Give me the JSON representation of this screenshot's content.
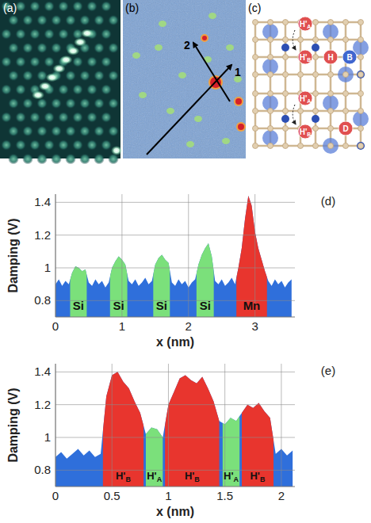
{
  "panels": {
    "a": {
      "label": "(a)"
    },
    "b": {
      "label": "(b)",
      "arrows": [
        {
          "label": "1"
        },
        {
          "label": "2"
        }
      ]
    },
    "c": {
      "label": "(c)",
      "atoms": [
        {
          "label": "H'",
          "subscript": "A"
        },
        {
          "label": "H'",
          "subscript": "B"
        },
        {
          "label": "H"
        },
        {
          "label": "B"
        },
        {
          "label": "H'",
          "subscript": "A"
        },
        {
          "label": "D"
        },
        {
          "label": "H'",
          "subscript": "B"
        }
      ]
    }
  },
  "chart_data": [
    {
      "type": "area",
      "panel_label": "(d)",
      "x_label": "x (nm)",
      "y_label": "Damping (V)",
      "xlim": [
        0,
        3.6
      ],
      "ylim": [
        0.7,
        1.45
      ],
      "xticks": [
        0,
        1,
        2,
        3
      ],
      "yticks": [
        0.8,
        1,
        1.2,
        1.4
      ],
      "grid": true,
      "color": "#2f6fdb",
      "x": [
        0,
        0.05,
        0.1,
        0.15,
        0.2,
        0.25,
        0.3,
        0.35,
        0.4,
        0.45,
        0.5,
        0.55,
        0.6,
        0.65,
        0.7,
        0.75,
        0.8,
        0.85,
        0.9,
        0.95,
        1,
        1.05,
        1.1,
        1.15,
        1.2,
        1.25,
        1.3,
        1.35,
        1.4,
        1.45,
        1.5,
        1.55,
        1.6,
        1.65,
        1.7,
        1.75,
        1.8,
        1.85,
        1.9,
        1.95,
        2,
        2.05,
        2.1,
        2.15,
        2.2,
        2.25,
        2.3,
        2.35,
        2.4,
        2.45,
        2.5,
        2.55,
        2.6,
        2.65,
        2.7,
        2.75,
        2.8,
        2.85,
        2.9,
        2.95,
        3,
        3.05,
        3.1,
        3.15,
        3.2,
        3.25,
        3.3,
        3.35,
        3.4,
        3.45,
        3.5,
        3.55
      ],
      "values": [
        0.9,
        0.93,
        0.89,
        0.92,
        0.9,
        0.97,
        1.01,
        1.0,
        0.98,
        0.99,
        0.91,
        0.89,
        0.93,
        0.9,
        0.92,
        0.88,
        0.91,
        1.0,
        1.04,
        1.07,
        1.05,
        1.02,
        0.92,
        0.9,
        0.93,
        0.89,
        0.91,
        0.94,
        0.9,
        0.92,
        1.02,
        1.06,
        1.08,
        1.05,
        1.03,
        0.91,
        0.89,
        0.93,
        0.9,
        0.92,
        0.88,
        0.91,
        0.93,
        1.02,
        1.08,
        1.12,
        1.15,
        1.07,
        0.92,
        0.9,
        0.93,
        0.89,
        0.91,
        0.94,
        0.9,
        1.0,
        1.12,
        1.3,
        1.44,
        1.38,
        1.22,
        1.12,
        1.05,
        0.98,
        0.92,
        0.89,
        0.93,
        0.9,
        0.92,
        0.88,
        0.91,
        0.93
      ],
      "regions": [
        {
          "label": "Si",
          "start": 0.22,
          "end": 0.47,
          "color": "#7be07b"
        },
        {
          "label": "Si",
          "start": 0.82,
          "end": 1.08,
          "color": "#7be07b"
        },
        {
          "label": "Si",
          "start": 1.47,
          "end": 1.72,
          "color": "#7be07b"
        },
        {
          "label": "Si",
          "start": 2.12,
          "end": 2.38,
          "color": "#7be07b"
        },
        {
          "label": "Mn",
          "start": 2.72,
          "end": 3.18,
          "color": "#e8352e"
        }
      ]
    },
    {
      "type": "area",
      "panel_label": "(e)",
      "x_label": "x (nm)",
      "y_label": "Damping (V)",
      "xlim": [
        0,
        2.12
      ],
      "ylim": [
        0.7,
        1.45
      ],
      "xticks": [
        0,
        0.5,
        1,
        1.5,
        2
      ],
      "yticks": [
        0.8,
        1,
        1.2,
        1.4
      ],
      "grid": true,
      "color": "#2f6fdb",
      "x": [
        0,
        0.05,
        0.1,
        0.15,
        0.2,
        0.25,
        0.3,
        0.35,
        0.4,
        0.45,
        0.5,
        0.55,
        0.6,
        0.65,
        0.7,
        0.75,
        0.8,
        0.85,
        0.9,
        0.95,
        1,
        1.05,
        1.1,
        1.15,
        1.2,
        1.25,
        1.3,
        1.35,
        1.4,
        1.45,
        1.5,
        1.55,
        1.6,
        1.65,
        1.7,
        1.75,
        1.8,
        1.85,
        1.9,
        1.95,
        2,
        2.05,
        2.1
      ],
      "values": [
        0.88,
        0.91,
        0.87,
        0.9,
        0.93,
        0.89,
        0.92,
        0.88,
        0.9,
        1.25,
        1.38,
        1.4,
        1.34,
        1.3,
        1.22,
        1.15,
        1.02,
        1.06,
        1.05,
        1.0,
        1.2,
        1.28,
        1.36,
        1.38,
        1.35,
        1.33,
        1.37,
        1.3,
        1.22,
        1.1,
        1.08,
        1.12,
        1.1,
        1.15,
        1.2,
        1.18,
        1.21,
        1.16,
        1.12,
        0.9,
        0.93,
        0.89,
        0.92
      ],
      "regions": [
        {
          "label": "H'",
          "subscript": "B",
          "start": 0.42,
          "end": 0.78,
          "color": "#e8352e"
        },
        {
          "label": "H'",
          "subscript": "A",
          "start": 0.8,
          "end": 0.95,
          "color": "#7be07b"
        },
        {
          "label": "H'",
          "subscript": "B",
          "start": 0.97,
          "end": 1.45,
          "color": "#e8352e"
        },
        {
          "label": "H'",
          "subscript": "A",
          "start": 1.48,
          "end": 1.63,
          "color": "#7be07b"
        },
        {
          "label": "H'",
          "subscript": "B",
          "start": 1.65,
          "end": 1.93,
          "color": "#e8352e"
        }
      ]
    }
  ]
}
